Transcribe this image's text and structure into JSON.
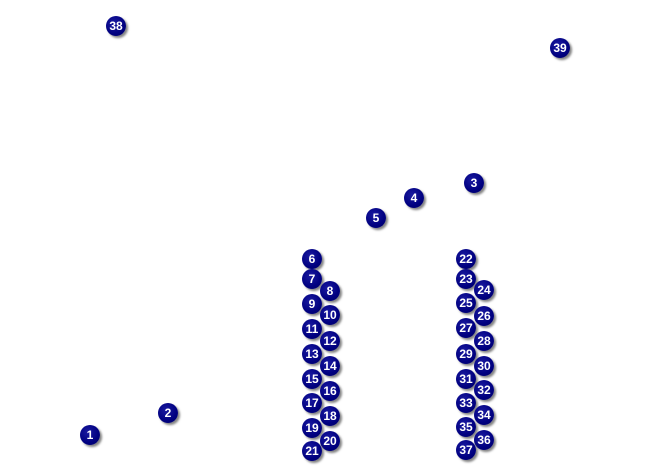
{
  "marker_color": "#000080",
  "marker_text_color": "#ffffff",
  "markers": [
    "1",
    "2",
    "3",
    "4",
    "5",
    "6",
    "7",
    "8",
    "9",
    "10",
    "11",
    "12",
    "13",
    "14",
    "15",
    "16",
    "17",
    "18",
    "19",
    "20",
    "21",
    "22",
    "23",
    "24",
    "25",
    "26",
    "27",
    "28",
    "29",
    "30",
    "31",
    "32",
    "33",
    "34",
    "35",
    "36",
    "37",
    "38",
    "39"
  ]
}
